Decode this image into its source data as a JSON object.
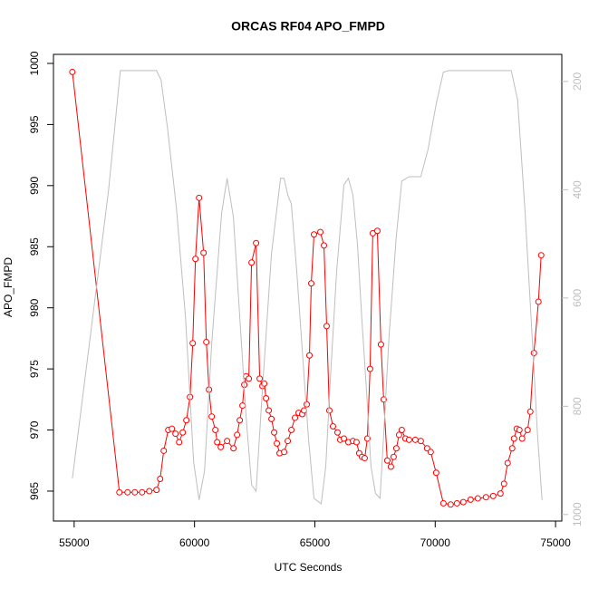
{
  "chart_data": {
    "type": "line",
    "title": "ORCAS RF04 APO_FMPD",
    "xlabel": "UTC Seconds",
    "ylabel": "APO_FMPD",
    "xlim": [
      54140,
      75260
    ],
    "xticks": [
      55000,
      60000,
      65000,
      70000,
      75000
    ],
    "ylim": [
      962.55,
      1000.74
    ],
    "yticks": [
      965,
      970,
      975,
      980,
      985,
      990,
      995,
      1000
    ],
    "y2lim": [
      1012,
      150
    ],
    "y2ticks": [
      200,
      400,
      600,
      800,
      1000
    ],
    "series": [
      {
        "color": "#ff0000",
        "marker": "circle",
        "x": [
          54925,
          56880,
          57218,
          57519,
          57820,
          58121,
          58422,
          58572,
          58722,
          58910,
          59061,
          59211,
          59362,
          59512,
          59662,
          59813,
          59926,
          60038,
          60189,
          60377,
          60490,
          60602,
          60715,
          60866,
          60941,
          61091,
          61354,
          61618,
          61768,
          61881,
          61994,
          62069,
          62144,
          62257,
          62370,
          62558,
          62708,
          62821,
          62896,
          62971,
          63084,
          63197,
          63310,
          63422,
          63535,
          63723,
          63874,
          64024,
          64174,
          64325,
          64475,
          64550,
          64663,
          64776,
          64851,
          64964,
          65227,
          65378,
          65490,
          65603,
          65754,
          65942,
          66054,
          66205,
          66393,
          66581,
          66731,
          66844,
          66957,
          67070,
          67182,
          67295,
          67408,
          67596,
          67746,
          67859,
          68010,
          68160,
          68273,
          68386,
          68498,
          68611,
          68762,
          68912,
          69175,
          69401,
          69664,
          69814,
          70040,
          70341,
          70642,
          70905,
          71168,
          71469,
          71770,
          72108,
          72409,
          72710,
          72860,
          73010,
          73198,
          73274,
          73386,
          73499,
          73612,
          73838,
          73950,
          74101,
          74289,
          74402
        ],
        "values": [
          999.3,
          964.9,
          964.9,
          964.9,
          964.9,
          965.0,
          965.1,
          966.0,
          968.3,
          970.0,
          970.1,
          969.7,
          969.0,
          969.8,
          970.8,
          972.7,
          977.1,
          984.0,
          989.0,
          984.5,
          977.2,
          973.3,
          971.1,
          970.0,
          969.0,
          968.6,
          969.1,
          968.5,
          969.6,
          970.8,
          972.0,
          973.7,
          974.4,
          974.2,
          983.7,
          985.3,
          974.2,
          973.6,
          973.8,
          972.6,
          971.6,
          970.9,
          969.8,
          968.9,
          968.1,
          968.2,
          969.1,
          970.0,
          971.0,
          971.4,
          971.3,
          971.6,
          972.1,
          976.1,
          982.0,
          986.0,
          986.2,
          985.1,
          978.5,
          971.6,
          970.3,
          969.8,
          969.2,
          969.3,
          969.0,
          969.1,
          969.0,
          968.1,
          967.8,
          967.7,
          969.3,
          975.0,
          986.1,
          986.3,
          977.0,
          972.5,
          967.5,
          967.0,
          967.8,
          968.5,
          969.6,
          970.0,
          969.3,
          969.2,
          969.2,
          969.1,
          968.5,
          968.2,
          966.5,
          964.0,
          963.9,
          964.0,
          964.1,
          964.3,
          964.4,
          964.5,
          964.6,
          964.8,
          965.6,
          967.3,
          968.5,
          969.3,
          970.1,
          970.0,
          969.3,
          970.0,
          971.5,
          976.3,
          980.5,
          984.3
        ]
      },
      {
        "color": "#bebebe",
        "axis": "y2",
        "x": [
          54925,
          55677,
          56429,
          56918,
          57557,
          58422,
          58610,
          58873,
          59249,
          59625,
          59963,
          60189,
          60414,
          60715,
          61129,
          61354,
          61618,
          61881,
          62144,
          62370,
          62558,
          62821,
          63197,
          63573,
          63723,
          63874,
          64024,
          64250,
          64513,
          64738,
          64964,
          65265,
          65453,
          65641,
          65904,
          66205,
          66393,
          66581,
          66769,
          66957,
          67145,
          67333,
          67521,
          67709,
          67859,
          68085,
          68386,
          68611,
          68912,
          69401,
          69701,
          70040,
          70341,
          70566,
          73161,
          73424,
          73725,
          74026,
          74251,
          74439
        ],
        "values": [
          933,
          669,
          401,
          180,
          180,
          180,
          197,
          284,
          434,
          635,
          903,
          973,
          920,
          685,
          443,
          379,
          451,
          635,
          819,
          945,
          957,
          769,
          518,
          379,
          379,
          410,
          426,
          551,
          719,
          861,
          970,
          980,
          911,
          752,
          551,
          391,
          379,
          410,
          501,
          644,
          769,
          911,
          961,
          970,
          853,
          669,
          485,
          384,
          376,
          376,
          326,
          242,
          183,
          180,
          180,
          234,
          434,
          669,
          853,
          973
        ]
      }
    ]
  }
}
